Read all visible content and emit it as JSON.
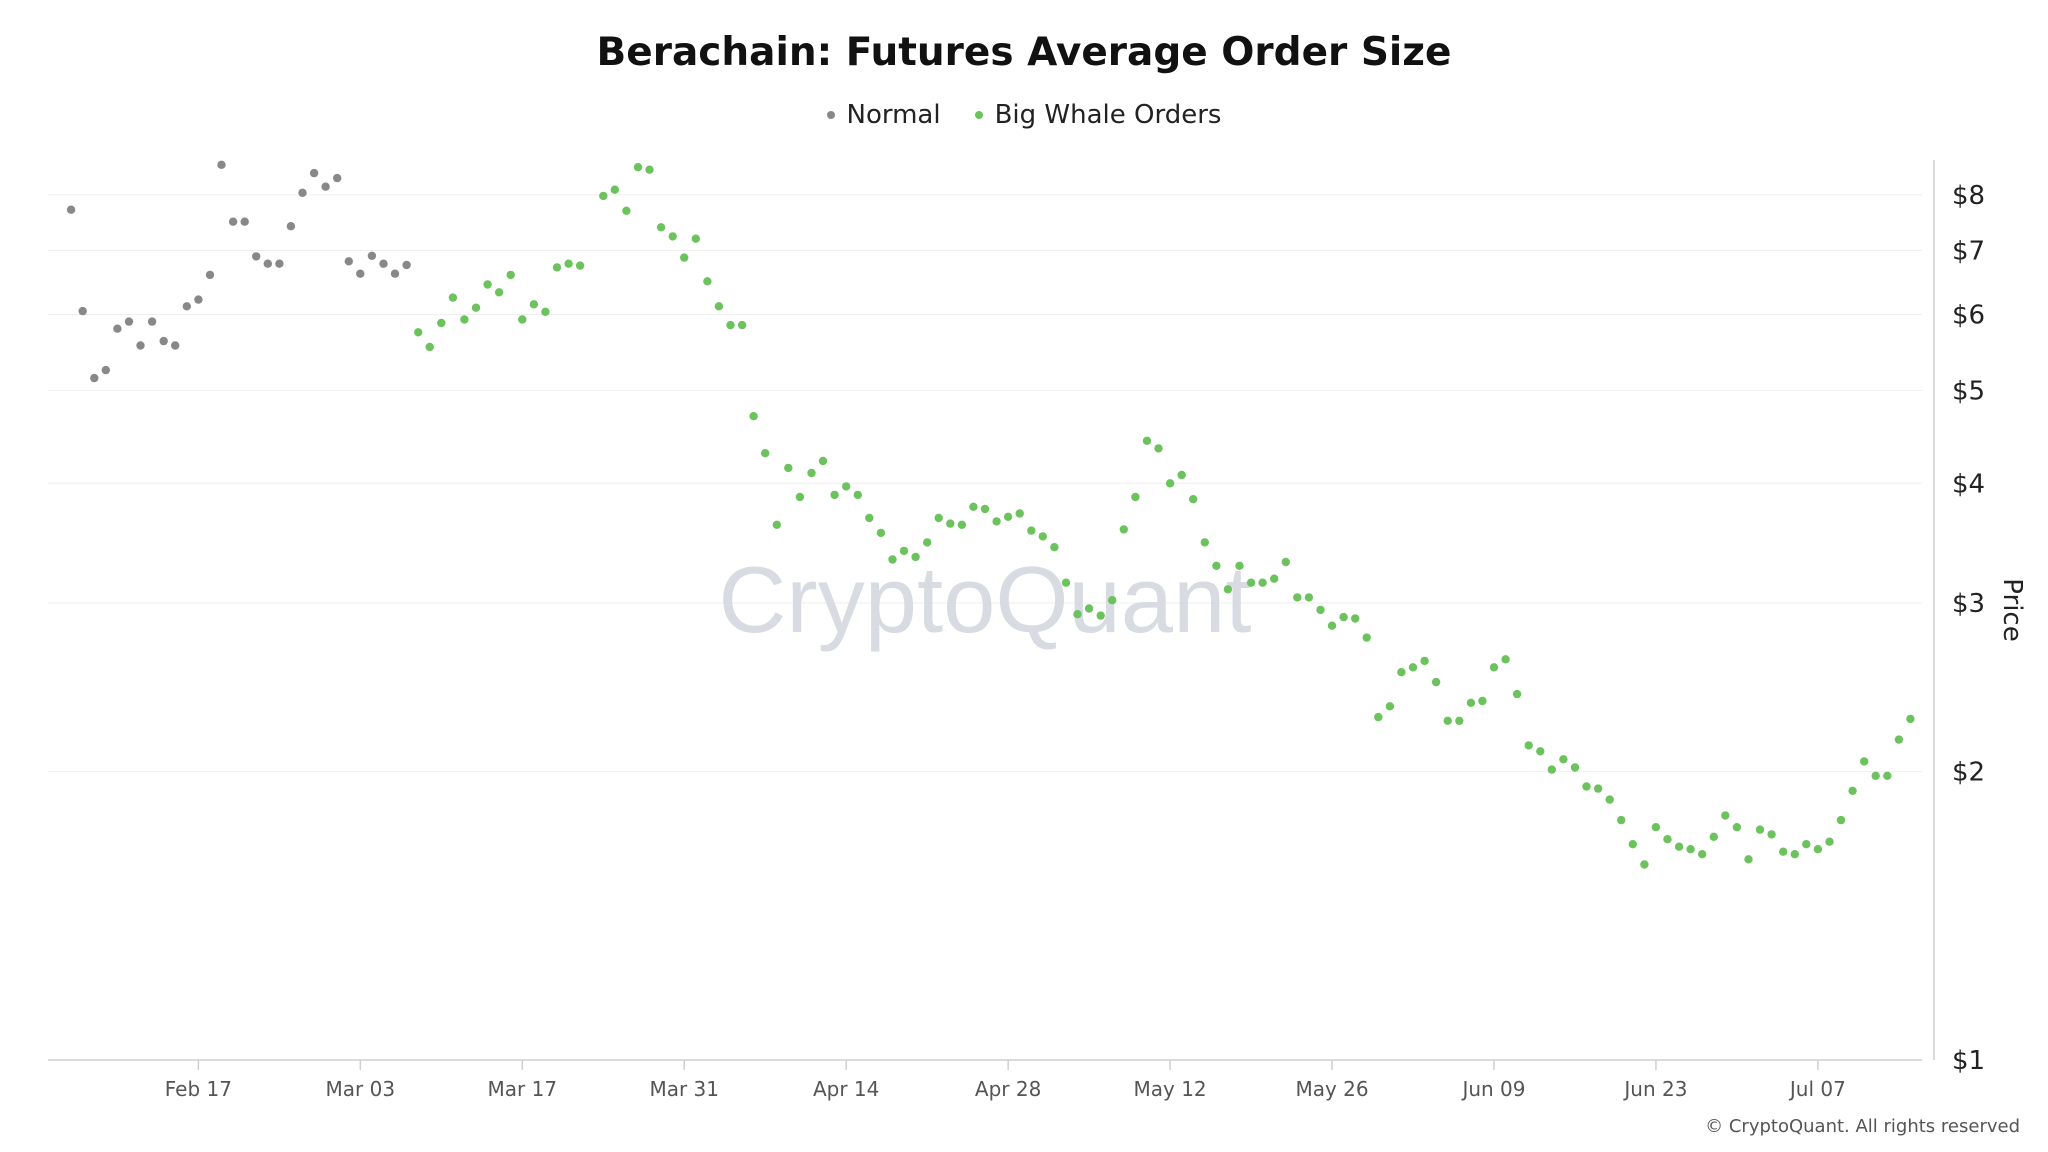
{
  "chart_data": {
    "type": "scatter",
    "title": "Berachain: Futures Average Order Size",
    "xlabel": "",
    "ylabel": "Price",
    "y_scale": "log",
    "ylim": [
      1,
      8.7
    ],
    "xlim": [
      "2025-02-04",
      "2025-07-16"
    ],
    "grid": true,
    "legend_position": "top-center",
    "watermark": "CryptoQuant",
    "x_ticks": [
      {
        "date": "2025-02-17",
        "label": "Feb 17"
      },
      {
        "date": "2025-03-03",
        "label": "Mar 03"
      },
      {
        "date": "2025-03-17",
        "label": "Mar 17"
      },
      {
        "date": "2025-03-31",
        "label": "Mar 31"
      },
      {
        "date": "2025-04-14",
        "label": "Apr 14"
      },
      {
        "date": "2025-04-28",
        "label": "Apr 28"
      },
      {
        "date": "2025-05-12",
        "label": "May 12"
      },
      {
        "date": "2025-05-26",
        "label": "May 26"
      },
      {
        "date": "2025-06-09",
        "label": "Jun 09"
      },
      {
        "date": "2025-06-23",
        "label": "Jun 23"
      },
      {
        "date": "2025-07-07",
        "label": "Jul 07"
      }
    ],
    "y_ticks": [
      {
        "value": 1,
        "label": "$1"
      },
      {
        "value": 2,
        "label": "$2"
      },
      {
        "value": 3,
        "label": "$3"
      },
      {
        "value": 4,
        "label": "$4"
      },
      {
        "value": 5,
        "label": "$5"
      },
      {
        "value": 6,
        "label": "$6"
      },
      {
        "value": 7,
        "label": "$7"
      },
      {
        "value": 8,
        "label": "$8"
      }
    ],
    "series": [
      {
        "name": "Normal",
        "color": "#888888",
        "points": [
          [
            "2025-02-06",
            7.72
          ],
          [
            "2025-02-07",
            6.05
          ],
          [
            "2025-02-08",
            5.15
          ],
          [
            "2025-02-09",
            5.25
          ],
          [
            "2025-02-10",
            5.8
          ],
          [
            "2025-02-11",
            5.9
          ],
          [
            "2025-02-12",
            5.57
          ],
          [
            "2025-02-13",
            5.9
          ],
          [
            "2025-02-14",
            5.63
          ],
          [
            "2025-02-15",
            5.57
          ],
          [
            "2025-02-16",
            6.12
          ],
          [
            "2025-02-17",
            6.22
          ],
          [
            "2025-02-18",
            6.6
          ],
          [
            "2025-02-19",
            8.6
          ],
          [
            "2025-02-20",
            7.5
          ],
          [
            "2025-02-21",
            7.5
          ],
          [
            "2025-02-22",
            6.9
          ],
          [
            "2025-02-23",
            6.78
          ],
          [
            "2025-02-24",
            6.78
          ],
          [
            "2025-02-25",
            7.42
          ],
          [
            "2025-02-26",
            8.04
          ],
          [
            "2025-02-27",
            8.43
          ],
          [
            "2025-02-28",
            8.16
          ],
          [
            "2025-03-01",
            8.33
          ],
          [
            "2025-03-02",
            6.82
          ],
          [
            "2025-03-03",
            6.62
          ],
          [
            "2025-03-04",
            6.91
          ],
          [
            "2025-03-05",
            6.78
          ],
          [
            "2025-03-06",
            6.62
          ],
          [
            "2025-03-07",
            6.76
          ]
        ]
      },
      {
        "name": "Big Whale Orders",
        "color": "#6cc35e",
        "points": [
          [
            "2025-03-08",
            5.75
          ],
          [
            "2025-03-09",
            5.55
          ],
          [
            "2025-03-10",
            5.88
          ],
          [
            "2025-03-11",
            6.25
          ],
          [
            "2025-03-12",
            5.93
          ],
          [
            "2025-03-13",
            6.1
          ],
          [
            "2025-03-14",
            6.45
          ],
          [
            "2025-03-15",
            6.33
          ],
          [
            "2025-03-16",
            6.6
          ],
          [
            "2025-03-17",
            5.93
          ],
          [
            "2025-03-18",
            6.15
          ],
          [
            "2025-03-19",
            6.04
          ],
          [
            "2025-03-20",
            6.72
          ],
          [
            "2025-03-21",
            6.78
          ],
          [
            "2025-03-22",
            6.75
          ],
          [
            "2025-03-24",
            7.98
          ],
          [
            "2025-03-25",
            8.1
          ],
          [
            "2025-03-26",
            7.7
          ],
          [
            "2025-03-27",
            8.55
          ],
          [
            "2025-03-28",
            8.5
          ],
          [
            "2025-03-29",
            7.4
          ],
          [
            "2025-03-30",
            7.24
          ],
          [
            "2025-03-31",
            6.88
          ],
          [
            "2025-04-01",
            7.2
          ],
          [
            "2025-04-02",
            6.5
          ],
          [
            "2025-04-03",
            6.12
          ],
          [
            "2025-04-04",
            5.85
          ],
          [
            "2025-04-05",
            5.85
          ],
          [
            "2025-04-06",
            4.7
          ],
          [
            "2025-04-07",
            4.3
          ],
          [
            "2025-04-08",
            3.62
          ],
          [
            "2025-04-09",
            4.15
          ],
          [
            "2025-04-10",
            3.87
          ],
          [
            "2025-04-11",
            4.1
          ],
          [
            "2025-04-12",
            4.22
          ],
          [
            "2025-04-13",
            3.89
          ],
          [
            "2025-04-14",
            3.97
          ],
          [
            "2025-04-15",
            3.89
          ],
          [
            "2025-04-16",
            3.68
          ],
          [
            "2025-04-17",
            3.55
          ],
          [
            "2025-04-18",
            3.33
          ],
          [
            "2025-04-19",
            3.4
          ],
          [
            "2025-04-20",
            3.35
          ],
          [
            "2025-04-21",
            3.47
          ],
          [
            "2025-04-22",
            3.68
          ],
          [
            "2025-04-23",
            3.63
          ],
          [
            "2025-04-24",
            3.62
          ],
          [
            "2025-04-25",
            3.78
          ],
          [
            "2025-04-26",
            3.76
          ],
          [
            "2025-04-27",
            3.65
          ],
          [
            "2025-04-28",
            3.69
          ],
          [
            "2025-04-29",
            3.72
          ],
          [
            "2025-04-30",
            3.57
          ],
          [
            "2025-05-01",
            3.52
          ],
          [
            "2025-05-02",
            3.43
          ],
          [
            "2025-05-03",
            3.15
          ],
          [
            "2025-05-04",
            2.92
          ],
          [
            "2025-05-05",
            2.96
          ],
          [
            "2025-05-06",
            2.91
          ],
          [
            "2025-05-07",
            3.02
          ],
          [
            "2025-05-08",
            3.58
          ],
          [
            "2025-05-09",
            3.87
          ],
          [
            "2025-05-10",
            4.43
          ],
          [
            "2025-05-11",
            4.35
          ],
          [
            "2025-05-12",
            4.0
          ],
          [
            "2025-05-13",
            4.08
          ],
          [
            "2025-05-14",
            3.85
          ],
          [
            "2025-05-15",
            3.47
          ],
          [
            "2025-05-16",
            3.28
          ],
          [
            "2025-05-17",
            3.1
          ],
          [
            "2025-05-18",
            3.28
          ],
          [
            "2025-05-19",
            3.15
          ],
          [
            "2025-05-20",
            3.15
          ],
          [
            "2025-05-21",
            3.18
          ],
          [
            "2025-05-22",
            3.31
          ],
          [
            "2025-05-23",
            3.04
          ],
          [
            "2025-05-24",
            3.04
          ],
          [
            "2025-05-25",
            2.95
          ],
          [
            "2025-05-26",
            2.84
          ],
          [
            "2025-05-27",
            2.9
          ],
          [
            "2025-05-28",
            2.89
          ],
          [
            "2025-05-29",
            2.76
          ],
          [
            "2025-05-30",
            2.28
          ],
          [
            "2025-05-31",
            2.34
          ],
          [
            "2025-06-01",
            2.54
          ],
          [
            "2025-06-02",
            2.57
          ],
          [
            "2025-06-03",
            2.61
          ],
          [
            "2025-06-04",
            2.48
          ],
          [
            "2025-06-05",
            2.26
          ],
          [
            "2025-06-06",
            2.26
          ],
          [
            "2025-06-07",
            2.36
          ],
          [
            "2025-06-08",
            2.37
          ],
          [
            "2025-06-09",
            2.57
          ],
          [
            "2025-06-10",
            2.62
          ],
          [
            "2025-06-11",
            2.41
          ],
          [
            "2025-06-12",
            2.13
          ],
          [
            "2025-06-13",
            2.1
          ],
          [
            "2025-06-14",
            2.01
          ],
          [
            "2025-06-15",
            2.06
          ],
          [
            "2025-06-16",
            2.02
          ],
          [
            "2025-06-17",
            1.93
          ],
          [
            "2025-06-18",
            1.92
          ],
          [
            "2025-06-19",
            1.87
          ],
          [
            "2025-06-20",
            1.78
          ],
          [
            "2025-06-21",
            1.68
          ],
          [
            "2025-06-22",
            1.6
          ],
          [
            "2025-06-23",
            1.75
          ],
          [
            "2025-06-24",
            1.7
          ],
          [
            "2025-06-25",
            1.67
          ],
          [
            "2025-06-26",
            1.66
          ],
          [
            "2025-06-27",
            1.64
          ],
          [
            "2025-06-28",
            1.71
          ],
          [
            "2025-06-29",
            1.8
          ],
          [
            "2025-06-30",
            1.75
          ],
          [
            "2025-07-01",
            1.62
          ],
          [
            "2025-07-02",
            1.74
          ],
          [
            "2025-07-03",
            1.72
          ],
          [
            "2025-07-04",
            1.65
          ],
          [
            "2025-07-05",
            1.64
          ],
          [
            "2025-07-06",
            1.68
          ],
          [
            "2025-07-07",
            1.66
          ],
          [
            "2025-07-08",
            1.69
          ],
          [
            "2025-07-09",
            1.78
          ],
          [
            "2025-07-10",
            1.91
          ],
          [
            "2025-07-11",
            2.05
          ],
          [
            "2025-07-12",
            1.98
          ],
          [
            "2025-07-13",
            1.98
          ],
          [
            "2025-07-14",
            2.16
          ],
          [
            "2025-07-15",
            2.27
          ]
        ]
      }
    ]
  },
  "copyright": "© CryptoQuant. All rights reserved"
}
